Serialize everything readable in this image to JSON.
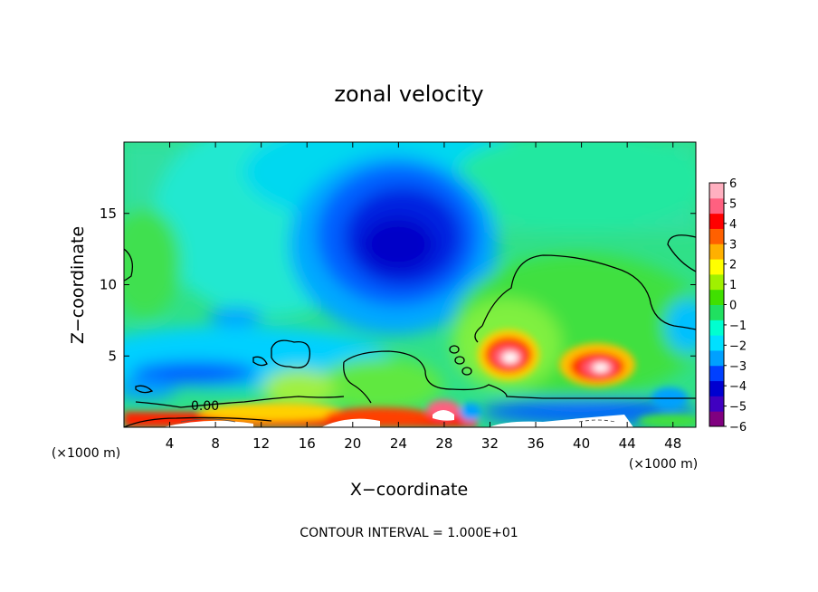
{
  "chart_data": {
    "type": "heatmap",
    "title": "zonal velocity",
    "xlabel": "X−coordinate",
    "ylabel": "Z−coordinate",
    "x_unit_left": "(×1000 m)",
    "x_unit_right": "(×1000 m)",
    "footer": "CONTOUR INTERVAL = 1.000E+01",
    "contour_label": "0.00",
    "xlim": [
      0,
      50
    ],
    "ylim": [
      0,
      20
    ],
    "x_ticks": [
      4,
      8,
      12,
      16,
      20,
      24,
      28,
      32,
      36,
      40,
      44,
      48
    ],
    "x_tick_labels": [
      "4",
      "8",
      "12",
      "16",
      "20",
      "24",
      "28",
      "32",
      "36",
      "40",
      "44",
      "48"
    ],
    "y_ticks": [
      5,
      10,
      15
    ],
    "y_tick_labels": [
      "5",
      "10",
      "15"
    ],
    "colorbar": {
      "min": -6,
      "max": 6,
      "labels": [
        "6",
        "5",
        "4",
        "3",
        "2",
        "1",
        "0",
        "−1",
        "−2",
        "−3",
        "−4",
        "−5",
        "−6"
      ],
      "colors": [
        "#800080",
        "#4000c0",
        "#0000d0",
        "#0040ff",
        "#00a0ff",
        "#00e0ff",
        "#00ffd0",
        "#20e060",
        "#40e000",
        "#a0f000",
        "#ffff00",
        "#ffb000",
        "#ff6000",
        "#ff0000",
        "#ff6080",
        "#ffb0c0"
      ]
    },
    "features": [
      {
        "name": "negative core",
        "x": 23,
        "z": 13,
        "value": -5.5
      },
      {
        "name": "positive max 1",
        "x": 33,
        "z": 4.8,
        "value": 6
      },
      {
        "name": "positive max 2",
        "x": 42,
        "z": 4.2,
        "value": 5.5
      },
      {
        "name": "low-level negative band",
        "x": 7,
        "z": 3.8,
        "value": -4.5
      }
    ]
  }
}
